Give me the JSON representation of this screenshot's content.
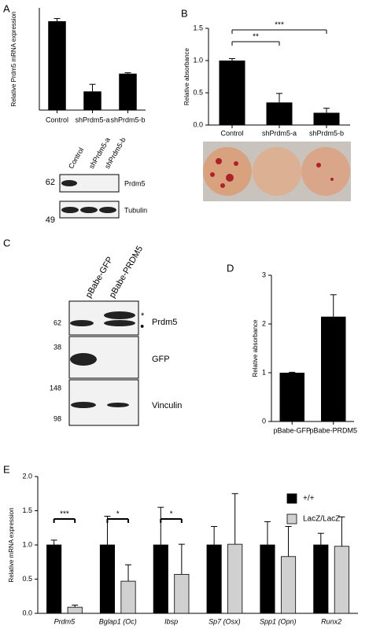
{
  "panel_labels": [
    "A",
    "B",
    "C",
    "D",
    "E"
  ],
  "chart_data": [
    {
      "type": "bar",
      "y_label": "Relative Prdm5 mRNA expression",
      "categories": [
        "Control",
        "shPrdm5-a",
        "shPrdm5-b"
      ],
      "values": [
        1.0,
        0.21,
        0.41
      ],
      "errors": [
        0.03,
        0.08,
        0.01
      ],
      "color": "#000000",
      "ylim": [
        0,
        1.15
      ]
    },
    {
      "type": "bar",
      "y_label": "Relative absorbance",
      "categories": [
        "Control",
        "shPrdm5-a",
        "shPrdm5-b"
      ],
      "values": [
        1.0,
        0.35,
        0.19
      ],
      "errors": [
        0.03,
        0.14,
        0.07
      ],
      "color": "#000000",
      "ylim": [
        0,
        1.5
      ],
      "yticks": [
        {
          "value": 0,
          "label": "0.0"
        },
        0.5,
        {
          "value": 1,
          "label": "1.0"
        },
        1.5
      ],
      "annotations": [
        {
          "text": "**",
          "between": [
            0,
            1
          ]
        },
        {
          "text": "***",
          "between": [
            0,
            2
          ]
        }
      ]
    },
    {
      "type": "bar",
      "y_label": "Relative absorbance",
      "categories": [
        "pBabe-GFP",
        "pBabe-PRDM5"
      ],
      "values": [
        1.0,
        2.15
      ],
      "errors": [
        0.01,
        0.45
      ],
      "color": "#000000",
      "ylim": [
        0,
        3
      ],
      "yticks": [
        0,
        1,
        2,
        3
      ]
    },
    {
      "type": "grouped_bar",
      "y_label": "Relative mRNA expression",
      "categories": [
        "Prdm5",
        "Bglap1 (Oc)",
        "Ibsp",
        "Sp7 (Osx)",
        "Spp1 (Opn)",
        "Runx2"
      ],
      "series": [
        {
          "name": "+/+",
          "color": "#000000",
          "values": [
            1.0,
            1.0,
            1.0,
            1.0,
            1.0,
            1.0
          ],
          "errors": [
            0.07,
            0.42,
            0.55,
            0.27,
            0.34,
            0.17
          ]
        },
        {
          "name": "LacZ/LacZ",
          "color": "#d0d0d0",
          "values": [
            0.09,
            0.47,
            0.57,
            1.01,
            0.83,
            0.98
          ],
          "errors": [
            0.03,
            0.24,
            0.44,
            0.74,
            0.44,
            0.43
          ]
        }
      ],
      "ylim": [
        0,
        2
      ],
      "yticks": [
        {
          "value": 0,
          "label": "0.0"
        },
        0.5,
        {
          "value": 1,
          "label": "1.0"
        },
        1.5,
        {
          "value": 2,
          "label": "2.0"
        }
      ],
      "legend": "upper right",
      "annotations": [
        {
          "text": "***",
          "category": 0
        },
        {
          "text": "*",
          "category": 1
        },
        {
          "text": "*",
          "category": 2
        }
      ]
    }
  ],
  "blots": [
    {
      "lanes": [
        "Control",
        "shPrdm5-a",
        "shPrdm5-b"
      ],
      "markers": [
        "62",
        "49"
      ],
      "bands": [
        "Prdm5",
        "Tubulin"
      ]
    },
    {
      "lanes": [
        "pBabe-GFP",
        "pBabe-PRDM5"
      ],
      "markers": [
        "62",
        "38",
        "148",
        "98"
      ],
      "bands": [
        "Prdm5",
        "GFP",
        "Vinculin"
      ],
      "symbols": [
        "*",
        "●"
      ]
    }
  ]
}
